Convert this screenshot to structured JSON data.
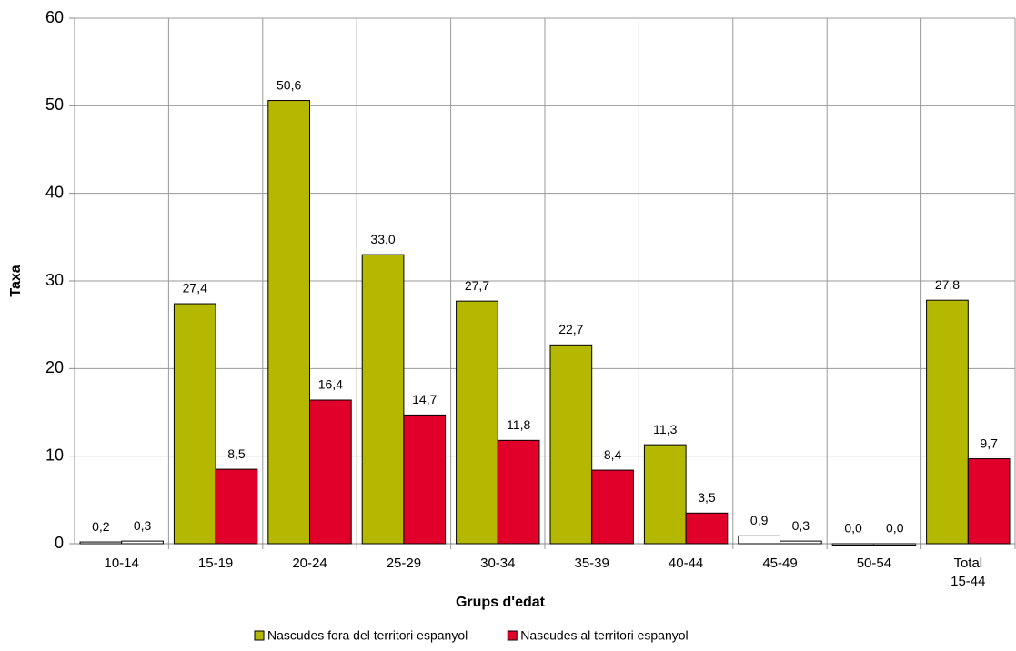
{
  "chart_data": {
    "type": "bar",
    "x_label": "Grups d'edat",
    "y_label": "Taxa",
    "categories": [
      "10-14",
      "15-19",
      "20-24",
      "25-29",
      "30-34",
      "35-39",
      "40-44",
      "45-49",
      "50-54",
      "Total 15-44"
    ],
    "series": [
      {
        "name": "Nascudes fora del territori espanyol",
        "color": "#b5b800",
        "colors": [
          "#ffffff",
          "#b5b800",
          "#b5b800",
          "#b5b800",
          "#b5b800",
          "#b5b800",
          "#b5b800",
          "#ffffff",
          "#ffffff",
          "#b5b800"
        ],
        "values": [
          0.2,
          27.4,
          50.6,
          33.0,
          27.7,
          22.7,
          11.3,
          0.9,
          0.0,
          27.8
        ],
        "value_labels": [
          "0,2",
          "27,4",
          "50,6",
          "33,0",
          "27,7",
          "22,7",
          "11,3",
          "0,9",
          "0,0",
          "27,8"
        ]
      },
      {
        "name": "Nascudes al territori espanyol",
        "color": "#e0002a",
        "colors": [
          "#ffffff",
          "#e0002a",
          "#e0002a",
          "#e0002a",
          "#e0002a",
          "#e0002a",
          "#e0002a",
          "#ffffff",
          "#ffffff",
          "#e0002a"
        ],
        "values": [
          0.3,
          8.5,
          16.4,
          14.7,
          11.8,
          8.4,
          3.5,
          0.3,
          0.0,
          9.7
        ],
        "value_labels": [
          "0,3",
          "8,5",
          "16,4",
          "14,7",
          "11,8",
          "8,4",
          "3,5",
          "0,3",
          "0,0",
          "9,7"
        ]
      }
    ],
    "ylim": [
      0,
      60
    ],
    "yticks": [
      0,
      10,
      20,
      30,
      40,
      50,
      60
    ],
    "grid": true,
    "legend": "bottom"
  }
}
